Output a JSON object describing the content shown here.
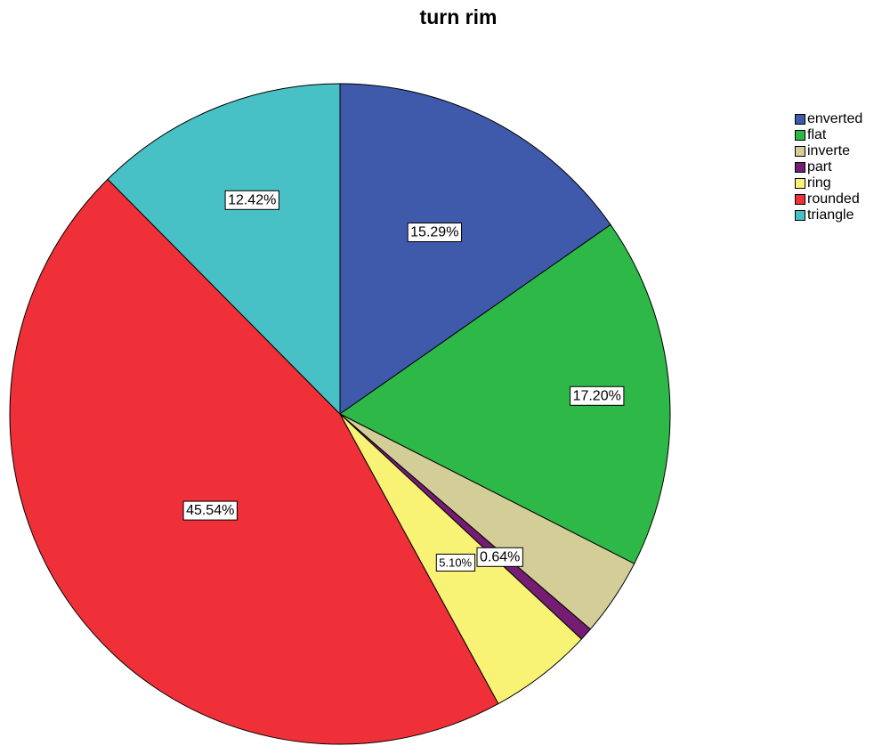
{
  "chart_data": {
    "type": "pie",
    "title": "turn rim",
    "legend_position": "top-right",
    "categories": [
      "enverted",
      "flat",
      "inverte",
      "part",
      "ring",
      "rounded",
      "triangle"
    ],
    "values": [
      15.29,
      17.2,
      3.81,
      0.64,
      5.1,
      45.54,
      12.42
    ],
    "labels": [
      "15.29%",
      "17.20%",
      null,
      "0.64%",
      "5.10%",
      "45.54%",
      "12.42%"
    ],
    "colors": [
      "#3f59ab",
      "#2eb848",
      "#d3ce97",
      "#751c73",
      "#f8f374",
      "#ef3038",
      "#48c1c6"
    ]
  }
}
